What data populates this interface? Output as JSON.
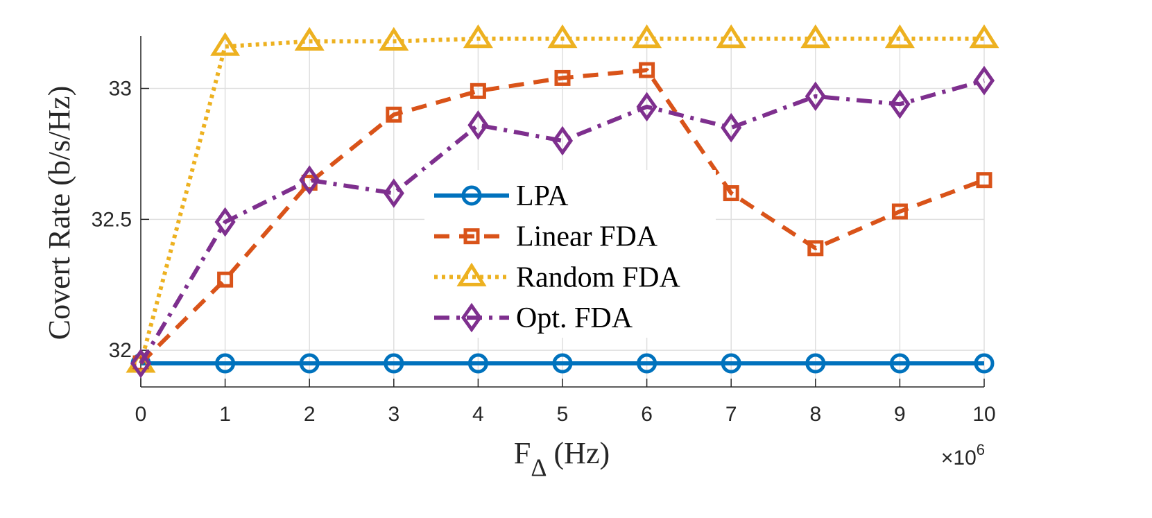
{
  "chart_data": {
    "type": "line",
    "xlabel": {
      "main": "F",
      "sub": "Δ",
      "unit": "(Hz)"
    },
    "ylabel": "Covert Rate (b/s/Hz)",
    "x": [
      0,
      1,
      2,
      3,
      4,
      5,
      6,
      7,
      8,
      9,
      10
    ],
    "xlim": [
      0,
      10
    ],
    "ylim": [
      31.86,
      33.2
    ],
    "xticks": [
      0,
      1,
      2,
      3,
      4,
      5,
      6,
      7,
      8,
      9,
      10
    ],
    "yticks": [
      32,
      32.5,
      33
    ],
    "xtick_labels": [
      "0",
      "1",
      "2",
      "3",
      "4",
      "5",
      "6",
      "7",
      "8",
      "9",
      "10"
    ],
    "ytick_labels": [
      "32",
      "32.5",
      "33"
    ],
    "x_exponent": {
      "base": "×10",
      "power": "6"
    },
    "grid": true,
    "legend_position": "center",
    "series": [
      {
        "name": "LPA",
        "color": "#0072BD",
        "linestyle": "solid",
        "marker": "circle",
        "values": [
          31.95,
          31.95,
          31.95,
          31.95,
          31.95,
          31.95,
          31.95,
          31.95,
          31.95,
          31.95,
          31.95
        ]
      },
      {
        "name": "Linear FDA",
        "color": "#D95319",
        "linestyle": "dashed",
        "marker": "square",
        "values": [
          31.95,
          32.27,
          32.64,
          32.9,
          32.99,
          33.04,
          33.07,
          32.6,
          32.39,
          32.53,
          32.65
        ]
      },
      {
        "name": "Random FDA",
        "color": "#EDB120",
        "linestyle": "dotted",
        "marker": "triangle",
        "values": [
          31.95,
          33.16,
          33.18,
          33.18,
          33.19,
          33.19,
          33.19,
          33.19,
          33.19,
          33.19,
          33.19
        ]
      },
      {
        "name": "Opt. FDA",
        "color": "#7E2F8E",
        "linestyle": "dashdot",
        "marker": "diamond",
        "values": [
          31.95,
          32.49,
          32.65,
          32.6,
          32.86,
          32.8,
          32.93,
          32.85,
          32.97,
          32.94,
          33.03
        ]
      }
    ]
  }
}
